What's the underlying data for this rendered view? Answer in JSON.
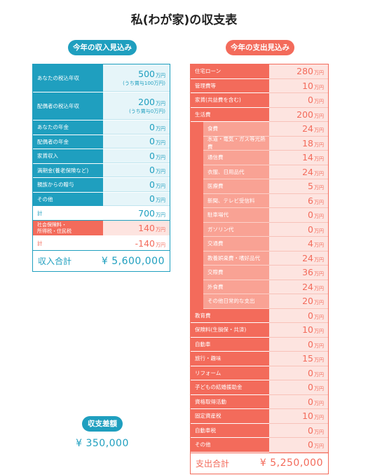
{
  "title": "私(わが家)の収支表",
  "income_header": "今年の収入見込み",
  "expense_header": "今年の支出見込み",
  "unit": "万円",
  "income": {
    "rows": [
      {
        "label": "あなたの税込年収",
        "value": "500",
        "note": "(うち賞与100万円)"
      },
      {
        "label": "配偶者の税込年収",
        "value": "200",
        "note": "(うち賞与0万円)"
      },
      {
        "label": "あなたの年金",
        "value": "0"
      },
      {
        "label": "配偶者の年金",
        "value": "0"
      },
      {
        "label": "家賃収入",
        "value": "0"
      },
      {
        "label": "満期金(養老保険など)",
        "value": "0"
      },
      {
        "label": "親族からの贈与",
        "value": "0"
      },
      {
        "label": "その他",
        "value": "0"
      }
    ],
    "subtotal_label": "計",
    "subtotal_value": "700",
    "tax_label_1": "社会保険料・",
    "tax_label_2": "所得税・住民税",
    "tax_value": "140",
    "net_label": "計",
    "net_value": "-140",
    "total_label": "収入合計",
    "total_value": "¥ 5,600,000"
  },
  "expense": {
    "rows_top": [
      {
        "label": "住宅ローン",
        "value": "280"
      },
      {
        "label": "管理費等",
        "value": "10"
      },
      {
        "label": "家賃(共益費を含む)",
        "value": "0"
      },
      {
        "label": "生活費",
        "value": "200"
      }
    ],
    "rows_sub": [
      {
        "label": "食費",
        "value": "24"
      },
      {
        "label": "水道・電気・ガス等光熱費",
        "value": "18"
      },
      {
        "label": "通信費",
        "value": "14"
      },
      {
        "label": "衣服、日用品代",
        "value": "24"
      },
      {
        "label": "医療費",
        "value": "5"
      },
      {
        "label": "新聞、テレビ受信料",
        "value": "6"
      },
      {
        "label": "駐車場代",
        "value": "0"
      },
      {
        "label": "ガソリン代",
        "value": "0"
      },
      {
        "label": "交通費",
        "value": "4"
      },
      {
        "label": "教養娯楽費・嗜好品代",
        "value": "24"
      },
      {
        "label": "交際費",
        "value": "36"
      },
      {
        "label": "外食費",
        "value": "24"
      },
      {
        "label": "その他日常的な支出",
        "value": "20"
      }
    ],
    "rows_bottom": [
      {
        "label": "教育費",
        "value": "0"
      },
      {
        "label": "保険料(生損保・共済)",
        "value": "10"
      },
      {
        "label": "自動車",
        "value": "0"
      },
      {
        "label": "旅行・趣味",
        "value": "15"
      },
      {
        "label": "リフォーム",
        "value": "0"
      },
      {
        "label": "子どもの結婚援助金",
        "value": "0"
      },
      {
        "label": "資格取得活動",
        "value": "0"
      },
      {
        "label": "固定資産税",
        "value": "10"
      },
      {
        "label": "自動車税",
        "value": "0"
      },
      {
        "label": "その他",
        "value": "0"
      }
    ],
    "total_label": "支出合計",
    "total_value": "¥ 5,250,000"
  },
  "balance_label": "収支差額",
  "balance_value": "¥ 350,000"
}
